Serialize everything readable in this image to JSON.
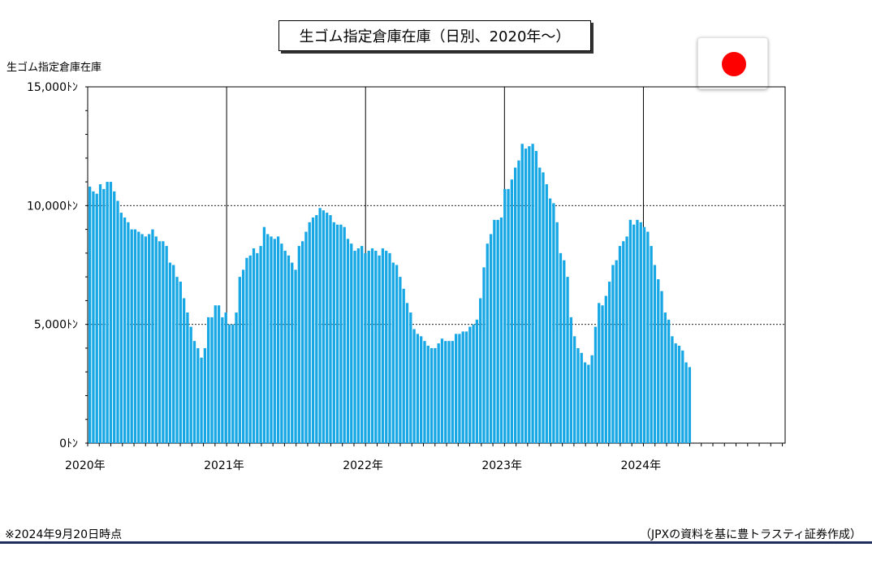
{
  "chart_data": {
    "type": "bar",
    "title": "生ゴム指定倉庫在庫（日別、2020年～）",
    "ylabel": "生ゴム指定倉庫在庫",
    "xlabel": "",
    "ylim": [
      0,
      15000
    ],
    "yticks": [
      {
        "value": 0,
        "label": "0ﾄﾝ"
      },
      {
        "value": 5000,
        "label": "5,000ﾄﾝ"
      },
      {
        "value": 10000,
        "label": "10,000ﾄﾝ"
      },
      {
        "value": 15000,
        "label": "15,000ﾄﾝ"
      }
    ],
    "year_labels": [
      "2020年",
      "2021年",
      "2022年",
      "2023年",
      "2024年"
    ],
    "x_range": [
      "2020-01",
      "2024-12"
    ],
    "grid": "horizontal dotted at 5,000 and 10,000; vertical at year starts",
    "bar_color": "#16A7E4",
    "values": [
      10800,
      10600,
      10500,
      10900,
      10700,
      11000,
      11000,
      10600,
      10200,
      9700,
      9500,
      9300,
      9000,
      9000,
      8900,
      8800,
      8700,
      8800,
      9000,
      8700,
      8500,
      8500,
      8300,
      7600,
      7500,
      7000,
      6800,
      6100,
      5500,
      4900,
      4300,
      4000,
      3600,
      4000,
      5300,
      5300,
      5800,
      5800,
      5300,
      5500,
      5000,
      5000,
      5500,
      7000,
      7300,
      7800,
      7900,
      8200,
      8000,
      8300,
      9100,
      8800,
      8700,
      8600,
      8700,
      8400,
      8100,
      7900,
      7600,
      7300,
      8300,
      8500,
      8900,
      9300,
      9500,
      9600,
      9900,
      9800,
      9700,
      9600,
      9300,
      9200,
      9200,
      9100,
      8600,
      8400,
      8100,
      8200,
      8300,
      8000,
      8100,
      8200,
      8100,
      7900,
      8200,
      8100,
      8000,
      7600,
      7500,
      7000,
      6500,
      5900,
      5500,
      4800,
      4600,
      4500,
      4300,
      4100,
      4000,
      4000,
      4200,
      4400,
      4300,
      4300,
      4300,
      4600,
      4600,
      4700,
      4700,
      4900,
      5000,
      5200,
      6100,
      7400,
      8400,
      8800,
      9400,
      9400,
      9500,
      10700,
      10700,
      11100,
      11600,
      11900,
      12600,
      12400,
      12500,
      12600,
      12300,
      11600,
      11400,
      10900,
      10300,
      10100,
      9300,
      8000,
      7700,
      7000,
      5300,
      4500,
      4000,
      3800,
      3400,
      3300,
      3700,
      4900,
      5900,
      5800,
      6200,
      6800,
      7500,
      7700,
      8300,
      8500,
      8700,
      9400,
      9200,
      9400,
      9300,
      9100,
      8900,
      8300,
      7500,
      6900,
      6400,
      5500,
      5200,
      4500,
      4200,
      4100,
      3900,
      3400,
      3200
    ]
  },
  "annotations": {
    "note": "※2024年9月20日時点",
    "source": "（JPXの資料を基に豊トラスティ証券作成）"
  },
  "colors": {
    "bar": "#16A7E4",
    "flag_red": "#FF0000",
    "rule": "#1F2D5A"
  },
  "icons": {
    "flag": "japan-flag-icon"
  }
}
